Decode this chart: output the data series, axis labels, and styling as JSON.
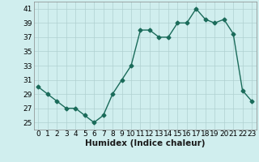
{
  "x": [
    0,
    1,
    2,
    3,
    4,
    5,
    6,
    7,
    8,
    9,
    10,
    11,
    12,
    13,
    14,
    15,
    16,
    17,
    18,
    19,
    20,
    21,
    22,
    23
  ],
  "y": [
    30,
    29,
    28,
    27,
    27,
    26,
    25,
    26,
    29,
    31,
    33,
    38,
    38,
    37,
    37,
    39,
    39,
    41,
    39.5,
    39,
    39.5,
    37.5,
    29.5,
    28
  ],
  "line_color": "#1a6b5a",
  "marker": "D",
  "marker_size": 2.5,
  "bg_color": "#d0eeee",
  "grid_color": "#b0d0d0",
  "xlabel": "Humidex (Indice chaleur)",
  "xlim": [
    -0.5,
    23.5
  ],
  "ylim": [
    24,
    42
  ],
  "yticks": [
    25,
    27,
    29,
    31,
    33,
    35,
    37,
    39,
    41
  ],
  "xtick_labels": [
    "0",
    "1",
    "2",
    "3",
    "4",
    "5",
    "6",
    "7",
    "8",
    "9",
    "10",
    "11",
    "12",
    "13",
    "14",
    "15",
    "16",
    "17",
    "18",
    "19",
    "20",
    "21",
    "22",
    "23"
  ],
  "tick_fontsize": 6.5,
  "xlabel_fontsize": 7.5,
  "linewidth": 1.0
}
